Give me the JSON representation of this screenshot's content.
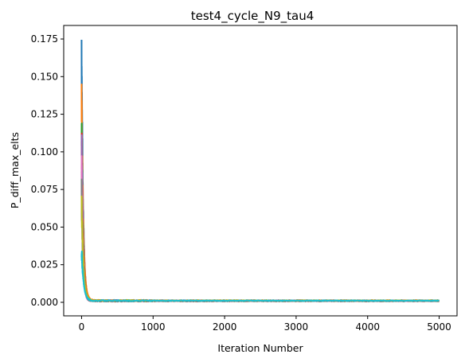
{
  "chart_data": {
    "type": "line",
    "title": "test4_cycle_N9_tau4",
    "xlabel": "Iteration Number",
    "ylabel": "P_diff_max_elts",
    "xlim": [
      -250,
      5250
    ],
    "ylim": [
      -0.009,
      0.184
    ],
    "xticks": [
      0,
      1000,
      2000,
      3000,
      4000,
      5000
    ],
    "xtick_labels": [
      "0",
      "1000",
      "2000",
      "3000",
      "4000",
      "5000"
    ],
    "yticks": [
      0.0,
      0.025,
      0.05,
      0.075,
      0.1,
      0.125,
      0.15,
      0.175
    ],
    "ytick_labels": [
      "0.000",
      "0.025",
      "0.050",
      "0.075",
      "0.100",
      "0.125",
      "0.150",
      "0.175"
    ],
    "grid": false,
    "legend": false,
    "series": [
      {
        "color": "#1f77b4",
        "peak": 0.175,
        "floor": 0.0011,
        "decay": 22
      },
      {
        "color": "#ff7f0e",
        "peak": 0.142,
        "floor": 0.0013,
        "decay": 24
      },
      {
        "color": "#2ca02c",
        "peak": 0.12,
        "floor": 0.0009,
        "decay": 20
      },
      {
        "color": "#d62728",
        "peak": 0.105,
        "floor": 0.001,
        "decay": 23
      },
      {
        "color": "#9467bd",
        "peak": 0.115,
        "floor": 0.0012,
        "decay": 21
      },
      {
        "color": "#8c564b",
        "peak": 0.08,
        "floor": 0.0008,
        "decay": 25
      },
      {
        "color": "#e377c2",
        "peak": 0.09,
        "floor": 0.001,
        "decay": 19
      },
      {
        "color": "#7f7f7f",
        "peak": 0.07,
        "floor": 0.0009,
        "decay": 22
      },
      {
        "color": "#bcbd22",
        "peak": 0.068,
        "floor": 0.0012,
        "decay": 26
      },
      {
        "color": "#17becf",
        "peak": 0.035,
        "floor": 0.0011,
        "decay": 28
      }
    ],
    "n_points": 5001
  }
}
